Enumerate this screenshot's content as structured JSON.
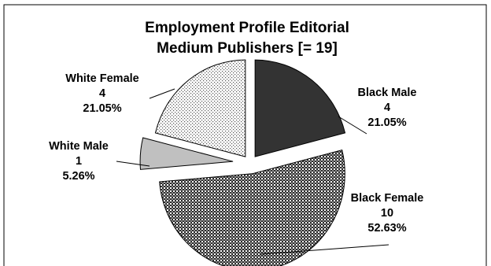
{
  "chart_data": {
    "type": "pie",
    "title_lines": [
      "Employment Profile Editorial",
      "Medium Publishers [= 19]"
    ],
    "total": 19,
    "legend": "none",
    "slices": [
      {
        "category": "Black Male",
        "count": "4",
        "percent": "21.05%",
        "value": 4,
        "fill": "dark"
      },
      {
        "category": "Black Female",
        "count": "10",
        "percent": "52.63%",
        "value": 10,
        "fill": "checker"
      },
      {
        "category": "White Male",
        "count": "1",
        "percent": "5.26%",
        "value": 1,
        "fill": "light-gray"
      },
      {
        "category": "White Female",
        "count": "4",
        "percent": "21.05%",
        "value": 4,
        "fill": "dots"
      }
    ]
  },
  "colors": {
    "border": "#000000",
    "dark_slice": "#333333",
    "light_slice": "#c0c0c0",
    "pattern_background": "#ffffff",
    "text": "#000000"
  }
}
